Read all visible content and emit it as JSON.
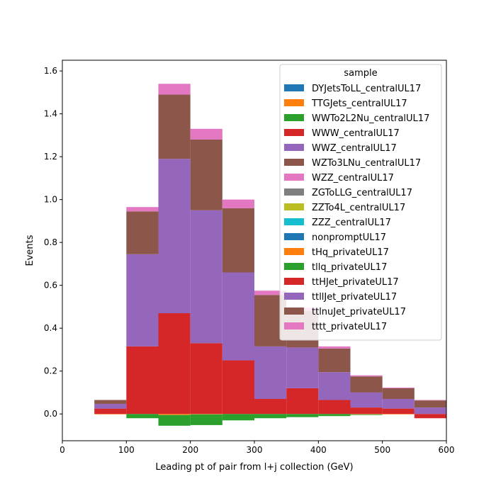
{
  "chart_data": {
    "type": "bar",
    "stacked": true,
    "title": "",
    "xlabel": "Leading pt of pair from l+j collection (GeV)",
    "ylabel": "Events",
    "xlim": [
      0,
      600
    ],
    "ylim": [
      -0.125,
      1.65
    ],
    "xticks": [
      "0",
      "100",
      "200",
      "300",
      "400",
      "500",
      "600"
    ],
    "yticks": [
      "0.0",
      "0.2",
      "0.4",
      "0.6",
      "0.8",
      "1.0",
      "1.2",
      "1.4",
      "1.6"
    ],
    "bin_edges": [
      50,
      100,
      150,
      200,
      250,
      300,
      350,
      400,
      450,
      500,
      550,
      600
    ],
    "grid": false,
    "legend": {
      "title": "sample",
      "placement": "top-right"
    },
    "series": [
      {
        "name": "DYJetsToLL_centralUL17",
        "color": "#1f77b4",
        "values": [
          0,
          0,
          0,
          0,
          0,
          0,
          0,
          0,
          0,
          0,
          0
        ]
      },
      {
        "name": "TTGJets_centralUL17",
        "color": "#ff7f0e",
        "values": [
          -0.002,
          0,
          -0.005,
          -0.002,
          0,
          0,
          0,
          0,
          -0.002,
          -0.002,
          0
        ]
      },
      {
        "name": "WWTo2L2Nu_centralUL17",
        "color": "#2ca02c",
        "values": [
          0,
          -0.02,
          -0.05,
          -0.05,
          -0.03,
          -0.02,
          -0.015,
          -0.01,
          -0.003,
          0,
          0
        ]
      },
      {
        "name": "WWW_centralUL17",
        "color": "#d62728",
        "values": [
          0.025,
          0.315,
          0.47,
          0.33,
          0.25,
          0.07,
          0.12,
          0.065,
          0.03,
          0.025,
          -0.02
        ]
      },
      {
        "name": "WWZ_centralUL17",
        "color": "#9467bd",
        "values": [
          0.022,
          0.43,
          0.72,
          0.62,
          0.41,
          0.245,
          0.19,
          0.13,
          0.07,
          0.045,
          0.03
        ]
      },
      {
        "name": "WZTo3LNu_centralUL17",
        "color": "#8c564b",
        "values": [
          0.018,
          0.2,
          0.3,
          0.33,
          0.3,
          0.24,
          0.17,
          0.11,
          0.075,
          0.05,
          0.033
        ]
      },
      {
        "name": "WZZ_centralUL17",
        "color": "#e377c2",
        "values": [
          0,
          0.02,
          0.05,
          0.05,
          0.04,
          0.02,
          0.015,
          0.01,
          0.005,
          0.003,
          0.002
        ]
      },
      {
        "name": "ZGToLLG_centralUL17",
        "color": "#7f7f7f",
        "values": [
          0,
          0,
          0,
          0,
          0,
          0,
          0,
          0,
          0,
          0,
          0
        ]
      },
      {
        "name": "ZZTo4L_centralUL17",
        "color": "#bcbd22",
        "values": [
          0,
          0,
          0,
          0,
          0,
          0,
          0,
          0,
          0,
          0,
          0
        ]
      },
      {
        "name": "ZZZ_centralUL17",
        "color": "#17becf",
        "values": [
          0,
          0,
          0,
          0,
          0,
          0,
          0,
          0,
          0,
          0,
          0
        ]
      },
      {
        "name": "nonpromptUL17",
        "color": "#1f77b4",
        "values": [
          0,
          0,
          0,
          0,
          0,
          0,
          0,
          0,
          0,
          0,
          0
        ]
      },
      {
        "name": "tHq_privateUL17",
        "color": "#ff7f0e",
        "values": [
          0,
          0,
          0,
          0,
          0,
          0,
          0,
          0,
          0,
          0,
          0
        ]
      },
      {
        "name": "tllq_privateUL17",
        "color": "#2ca02c",
        "values": [
          0,
          0,
          0,
          0,
          0,
          0,
          0,
          0,
          0,
          0,
          0
        ]
      },
      {
        "name": "ttHJet_privateUL17",
        "color": "#d62728",
        "values": [
          0,
          0,
          0,
          0,
          0,
          0,
          0,
          0,
          0,
          0,
          0
        ]
      },
      {
        "name": "ttllJet_privateUL17",
        "color": "#9467bd",
        "values": [
          0,
          0,
          0,
          0,
          0,
          0,
          0,
          0,
          0,
          0,
          0
        ]
      },
      {
        "name": "ttlnuJet_privateUL17",
        "color": "#8c564b",
        "values": [
          0,
          0,
          0,
          0,
          0,
          0,
          0,
          0,
          0,
          0,
          0
        ]
      },
      {
        "name": "tttt_privateUL17",
        "color": "#e377c2",
        "values": [
          0,
          0,
          0,
          0,
          0,
          0,
          0,
          0,
          0,
          0,
          0
        ]
      }
    ]
  }
}
